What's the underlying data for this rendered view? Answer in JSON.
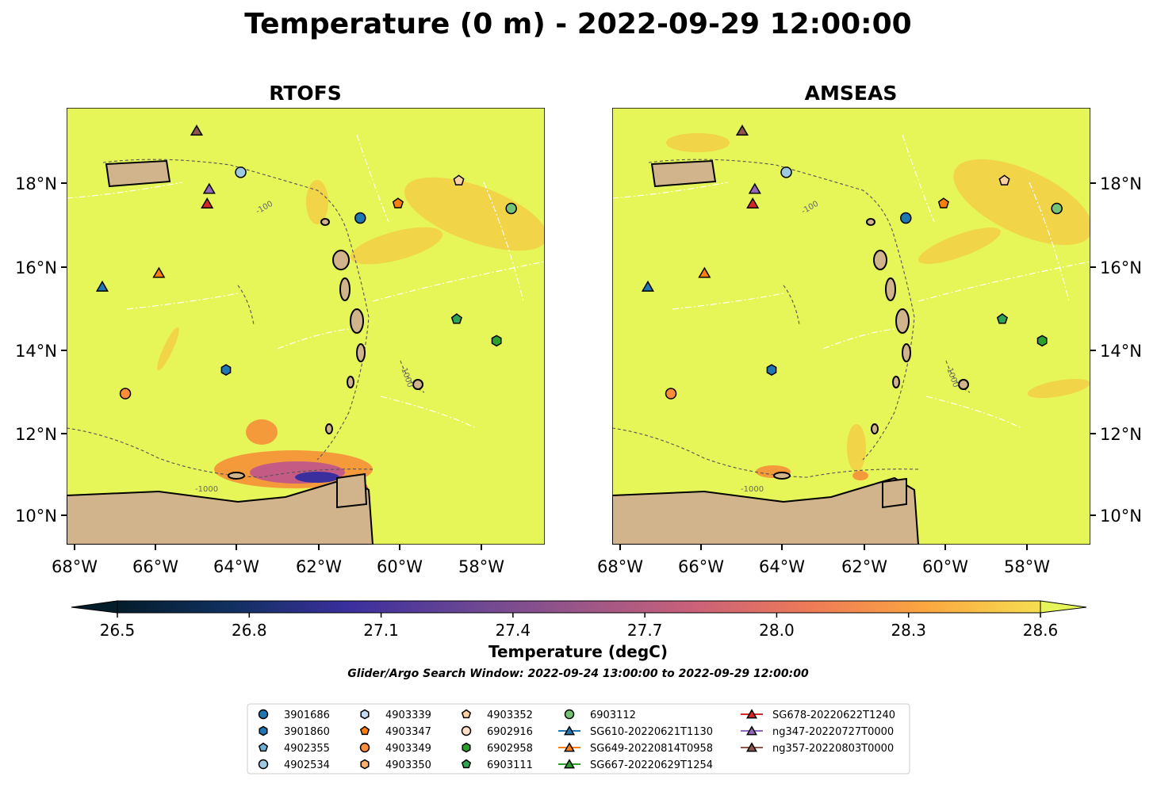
{
  "title": "Temperature (0 m) - 2022-09-29 12:00:00",
  "panels": [
    {
      "title": "RTOFS",
      "lat_ticks": [
        "18°N",
        "16°N",
        "14°N",
        "12°N",
        "10°N"
      ],
      "lon_ticks": [
        "68°W",
        "66°W",
        "64°W",
        "62°W",
        "60°W",
        "58°W"
      ]
    },
    {
      "title": "AMSEAS",
      "lat_ticks": [
        "18°N",
        "16°N",
        "14°N",
        "12°N",
        "10°N"
      ],
      "lon_ticks": [
        "68°W",
        "66°W",
        "64°W",
        "62°W",
        "60°W",
        "58°W"
      ]
    }
  ],
  "map_extent": {
    "lon_min": -68.2,
    "lon_max": -56.8,
    "lat_min": 9.3,
    "lat_max": 19.8
  },
  "colorbar": {
    "label": "Temperature (degC)",
    "ticks": [
      "26.5",
      "26.8",
      "27.1",
      "27.4",
      "27.7",
      "28.0",
      "28.3",
      "28.6"
    ],
    "vmin": 26.5,
    "vmax": 28.6,
    "extend": "both",
    "colormap": "thermal"
  },
  "contours": {
    "isobaths_m": [
      "-100",
      "-1000"
    ]
  },
  "subtitle": "Glider/Argo Search Window: 2022-09-24 13:00:00 to 2022-09-29 12:00:00",
  "colors": {
    "ocean": "#e6f658",
    "land": "#d2b48c"
  },
  "legend": [
    {
      "label": "3901686",
      "marker": "circle",
      "color": "#1f77b4",
      "lon": -61.2,
      "lat": 17.15
    },
    {
      "label": "3901860",
      "marker": "hexagon",
      "color": "#1f77b4",
      "lon": -64.4,
      "lat": 13.5
    },
    {
      "label": "4902355",
      "marker": "pentagon",
      "color": "#6baed6",
      "lon": null,
      "lat": null
    },
    {
      "label": "4902534",
      "marker": "circle",
      "color": "#9ecae1",
      "lon": -64.05,
      "lat": 18.25
    },
    {
      "label": "4903339",
      "marker": "hexagon",
      "color": "#c6dbef",
      "lon": null,
      "lat": null
    },
    {
      "label": "4903347",
      "marker": "pentagon",
      "color": "#ff7f0e",
      "lon": -60.3,
      "lat": 17.5
    },
    {
      "label": "4903349",
      "marker": "circle",
      "color": "#fd8d3c",
      "lon": -66.8,
      "lat": 12.93
    },
    {
      "label": "4903350",
      "marker": "hexagon",
      "color": "#fdae6b",
      "lon": null,
      "lat": null
    },
    {
      "label": "4903352",
      "marker": "pentagon",
      "color": "#fdd0a2",
      "lon": -58.85,
      "lat": 18.05
    },
    {
      "label": "6902916",
      "marker": "circle",
      "color": "#fde0c8",
      "lon": null,
      "lat": null
    },
    {
      "label": "6902958",
      "marker": "hexagon",
      "color": "#2ca02c",
      "lon": -57.95,
      "lat": 14.2
    },
    {
      "label": "6903111",
      "marker": "pentagon",
      "color": "#31a354",
      "lon": -58.9,
      "lat": 14.72
    },
    {
      "label": "6903112",
      "marker": "circle",
      "color": "#74c476",
      "lon": -57.6,
      "lat": 17.38
    },
    {
      "label": "SG610-20220621T1130",
      "marker": "triangle",
      "color": "#1f77b4",
      "lon": -67.35,
      "lat": 15.5
    },
    {
      "label": "SG649-20220814T0958",
      "marker": "triangle",
      "color": "#ff7f0e",
      "lon": -66.0,
      "lat": 15.83
    },
    {
      "label": "SG667-20220629T1254",
      "marker": "triangle",
      "color": "#2ca02c",
      "lon": null,
      "lat": null
    },
    {
      "label": "SG678-20220622T1240",
      "marker": "triangle",
      "color": "#d62728",
      "lon": -64.85,
      "lat": 17.5
    },
    {
      "label": "ng347-20220727T0000",
      "marker": "triangle",
      "color": "#9467bd",
      "lon": -64.8,
      "lat": 17.85
    },
    {
      "label": "ng357-20220803T0000",
      "marker": "triangle",
      "color": "#8c564b",
      "lon": -65.1,
      "lat": 19.25
    }
  ]
}
